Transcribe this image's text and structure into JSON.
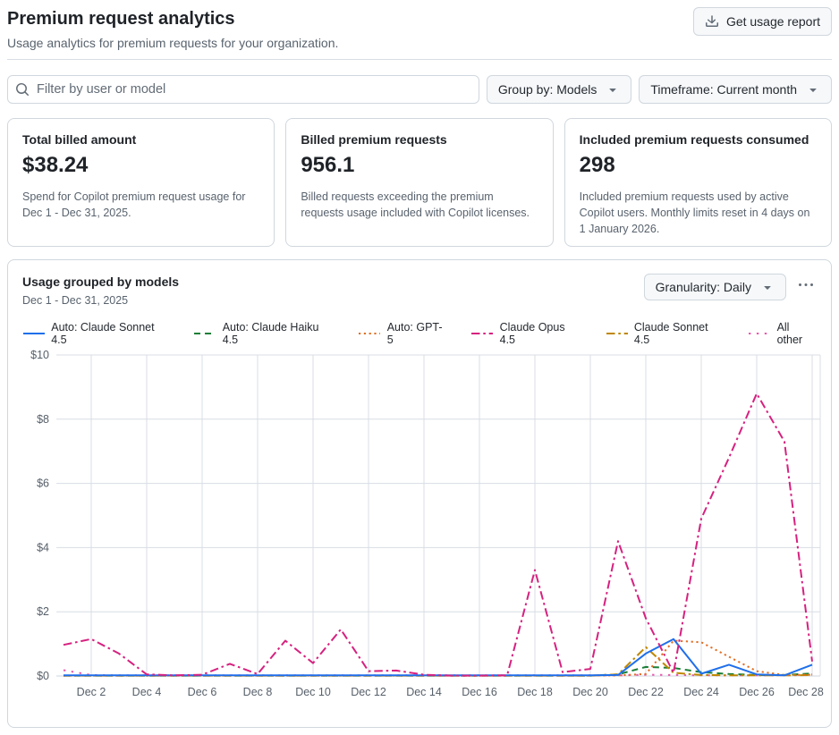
{
  "page": {
    "title": "Premium request analytics",
    "subtitle": "Usage analytics for premium requests for your organization.",
    "report_button": "Get usage report"
  },
  "filters": {
    "search_placeholder": "Filter by user or model",
    "group_by_button": "Group by: Models",
    "timeframe_button": "Timeframe: Current month"
  },
  "stats": [
    {
      "title": "Total billed amount",
      "value": "$38.24",
      "description": "Spend for Copilot premium request usage for Dec 1 - Dec 31, 2025."
    },
    {
      "title": "Billed premium requests",
      "value": "956.1",
      "description": "Billed requests exceeding the premium requests usage included with Copilot licenses."
    },
    {
      "title": "Included premium requests consumed",
      "value": "298",
      "description": "Included premium requests used by active Copilot users. Monthly limits reset in 4 days on 1 January 2026."
    }
  ],
  "chart_card": {
    "title": "Usage grouped by models",
    "subtitle": "Dec 1 - Dec 31, 2025",
    "granularity_button": "Granularity: Daily",
    "overflow_menu_icon": "kebab-horizontal-icon"
  },
  "chart_data": {
    "type": "line",
    "title": "Usage grouped by models",
    "x": [
      "Dec 1",
      "Dec 2",
      "Dec 3",
      "Dec 4",
      "Dec 5",
      "Dec 6",
      "Dec 7",
      "Dec 8",
      "Dec 9",
      "Dec 10",
      "Dec 11",
      "Dec 12",
      "Dec 13",
      "Dec 14",
      "Dec 15",
      "Dec 16",
      "Dec 17",
      "Dec 18",
      "Dec 19",
      "Dec 20",
      "Dec 21",
      "Dec 22",
      "Dec 23",
      "Dec 24",
      "Dec 25",
      "Dec 26",
      "Dec 27",
      "Dec 28"
    ],
    "x_tick_labels": [
      "Dec 2",
      "Dec 4",
      "Dec 6",
      "Dec 8",
      "Dec 10",
      "Dec 12",
      "Dec 14",
      "Dec 16",
      "Dec 18",
      "Dec 20",
      "Dec 22",
      "Dec 24",
      "Dec 26",
      "Dec 28"
    ],
    "y_ticks": [
      0,
      2,
      4,
      6,
      8,
      10
    ],
    "y_tick_prefix": "$",
    "ylim": [
      0,
      10
    ],
    "grid": true,
    "legend_position": "top",
    "series": [
      {
        "name": "Auto: Claude Sonnet 4.5",
        "color": "#1f6feb",
        "dash": "solid",
        "values": [
          0.02,
          0.02,
          0.02,
          0.02,
          0.02,
          0.02,
          0.02,
          0.02,
          0.02,
          0.02,
          0.02,
          0.02,
          0.02,
          0.02,
          0.02,
          0.02,
          0.02,
          0.02,
          0.02,
          0.02,
          0.03,
          0.7,
          1.15,
          0.07,
          0.35,
          0.05,
          0.02,
          0.35
        ]
      },
      {
        "name": "Auto: Claude Haiku 4.5",
        "color": "#1a7f37",
        "dash": "dashed",
        "values": [
          0.01,
          0.01,
          0.01,
          0.01,
          0.01,
          0.01,
          0.01,
          0.01,
          0.01,
          0.01,
          0.01,
          0.01,
          0.01,
          0.01,
          0.01,
          0.01,
          0.01,
          0.01,
          0.01,
          0.01,
          0.05,
          0.28,
          0.25,
          0.12,
          0.06,
          0.03,
          0.03,
          0.08
        ]
      },
      {
        "name": "Auto: GPT-5",
        "color": "#e16f24",
        "dash": "dotted",
        "values": [
          0.01,
          0.01,
          0.01,
          0.01,
          0.01,
          0.01,
          0.01,
          0.01,
          0.01,
          0.01,
          0.01,
          0.01,
          0.01,
          0.01,
          0.01,
          0.01,
          0.01,
          0.01,
          0.01,
          0.01,
          0.02,
          0.06,
          1.1,
          1.05,
          0.6,
          0.15,
          0.03,
          0.04
        ]
      },
      {
        "name": "Claude Opus 4.5",
        "color": "#d6217f",
        "dash": "dashdot",
        "values": [
          0.97,
          1.15,
          0.7,
          0.05,
          0.02,
          0.04,
          0.38,
          0.06,
          1.1,
          0.4,
          1.45,
          0.15,
          0.17,
          0.04,
          0.01,
          0.01,
          0.02,
          3.3,
          0.12,
          0.22,
          4.2,
          1.8,
          0.1,
          4.9,
          6.8,
          8.8,
          7.3,
          0.45
        ]
      },
      {
        "name": "Claude Sonnet 4.5",
        "color": "#bf8700",
        "dash": "dashdot",
        "values": [
          0.01,
          0.01,
          0.01,
          0.01,
          0.01,
          0.01,
          0.01,
          0.01,
          0.01,
          0.01,
          0.01,
          0.01,
          0.01,
          0.01,
          0.01,
          0.01,
          0.01,
          0.01,
          0.01,
          0.01,
          0.05,
          0.9,
          0.1,
          0.03,
          0.02,
          0.02,
          0.02,
          0.03
        ]
      },
      {
        "name": "All other",
        "color": "#e85aad",
        "dash": "sparse-dot",
        "values": [
          0.18,
          0.03,
          0.02,
          0.02,
          0.02,
          0.02,
          0.02,
          0.02,
          0.02,
          0.02,
          0.02,
          0.02,
          0.02,
          0.02,
          0.02,
          0.02,
          0.02,
          0.02,
          0.02,
          0.02,
          0.02,
          0.04,
          0.03,
          0.02,
          0.02,
          0.02,
          0.02,
          0.05
        ]
      }
    ]
  }
}
